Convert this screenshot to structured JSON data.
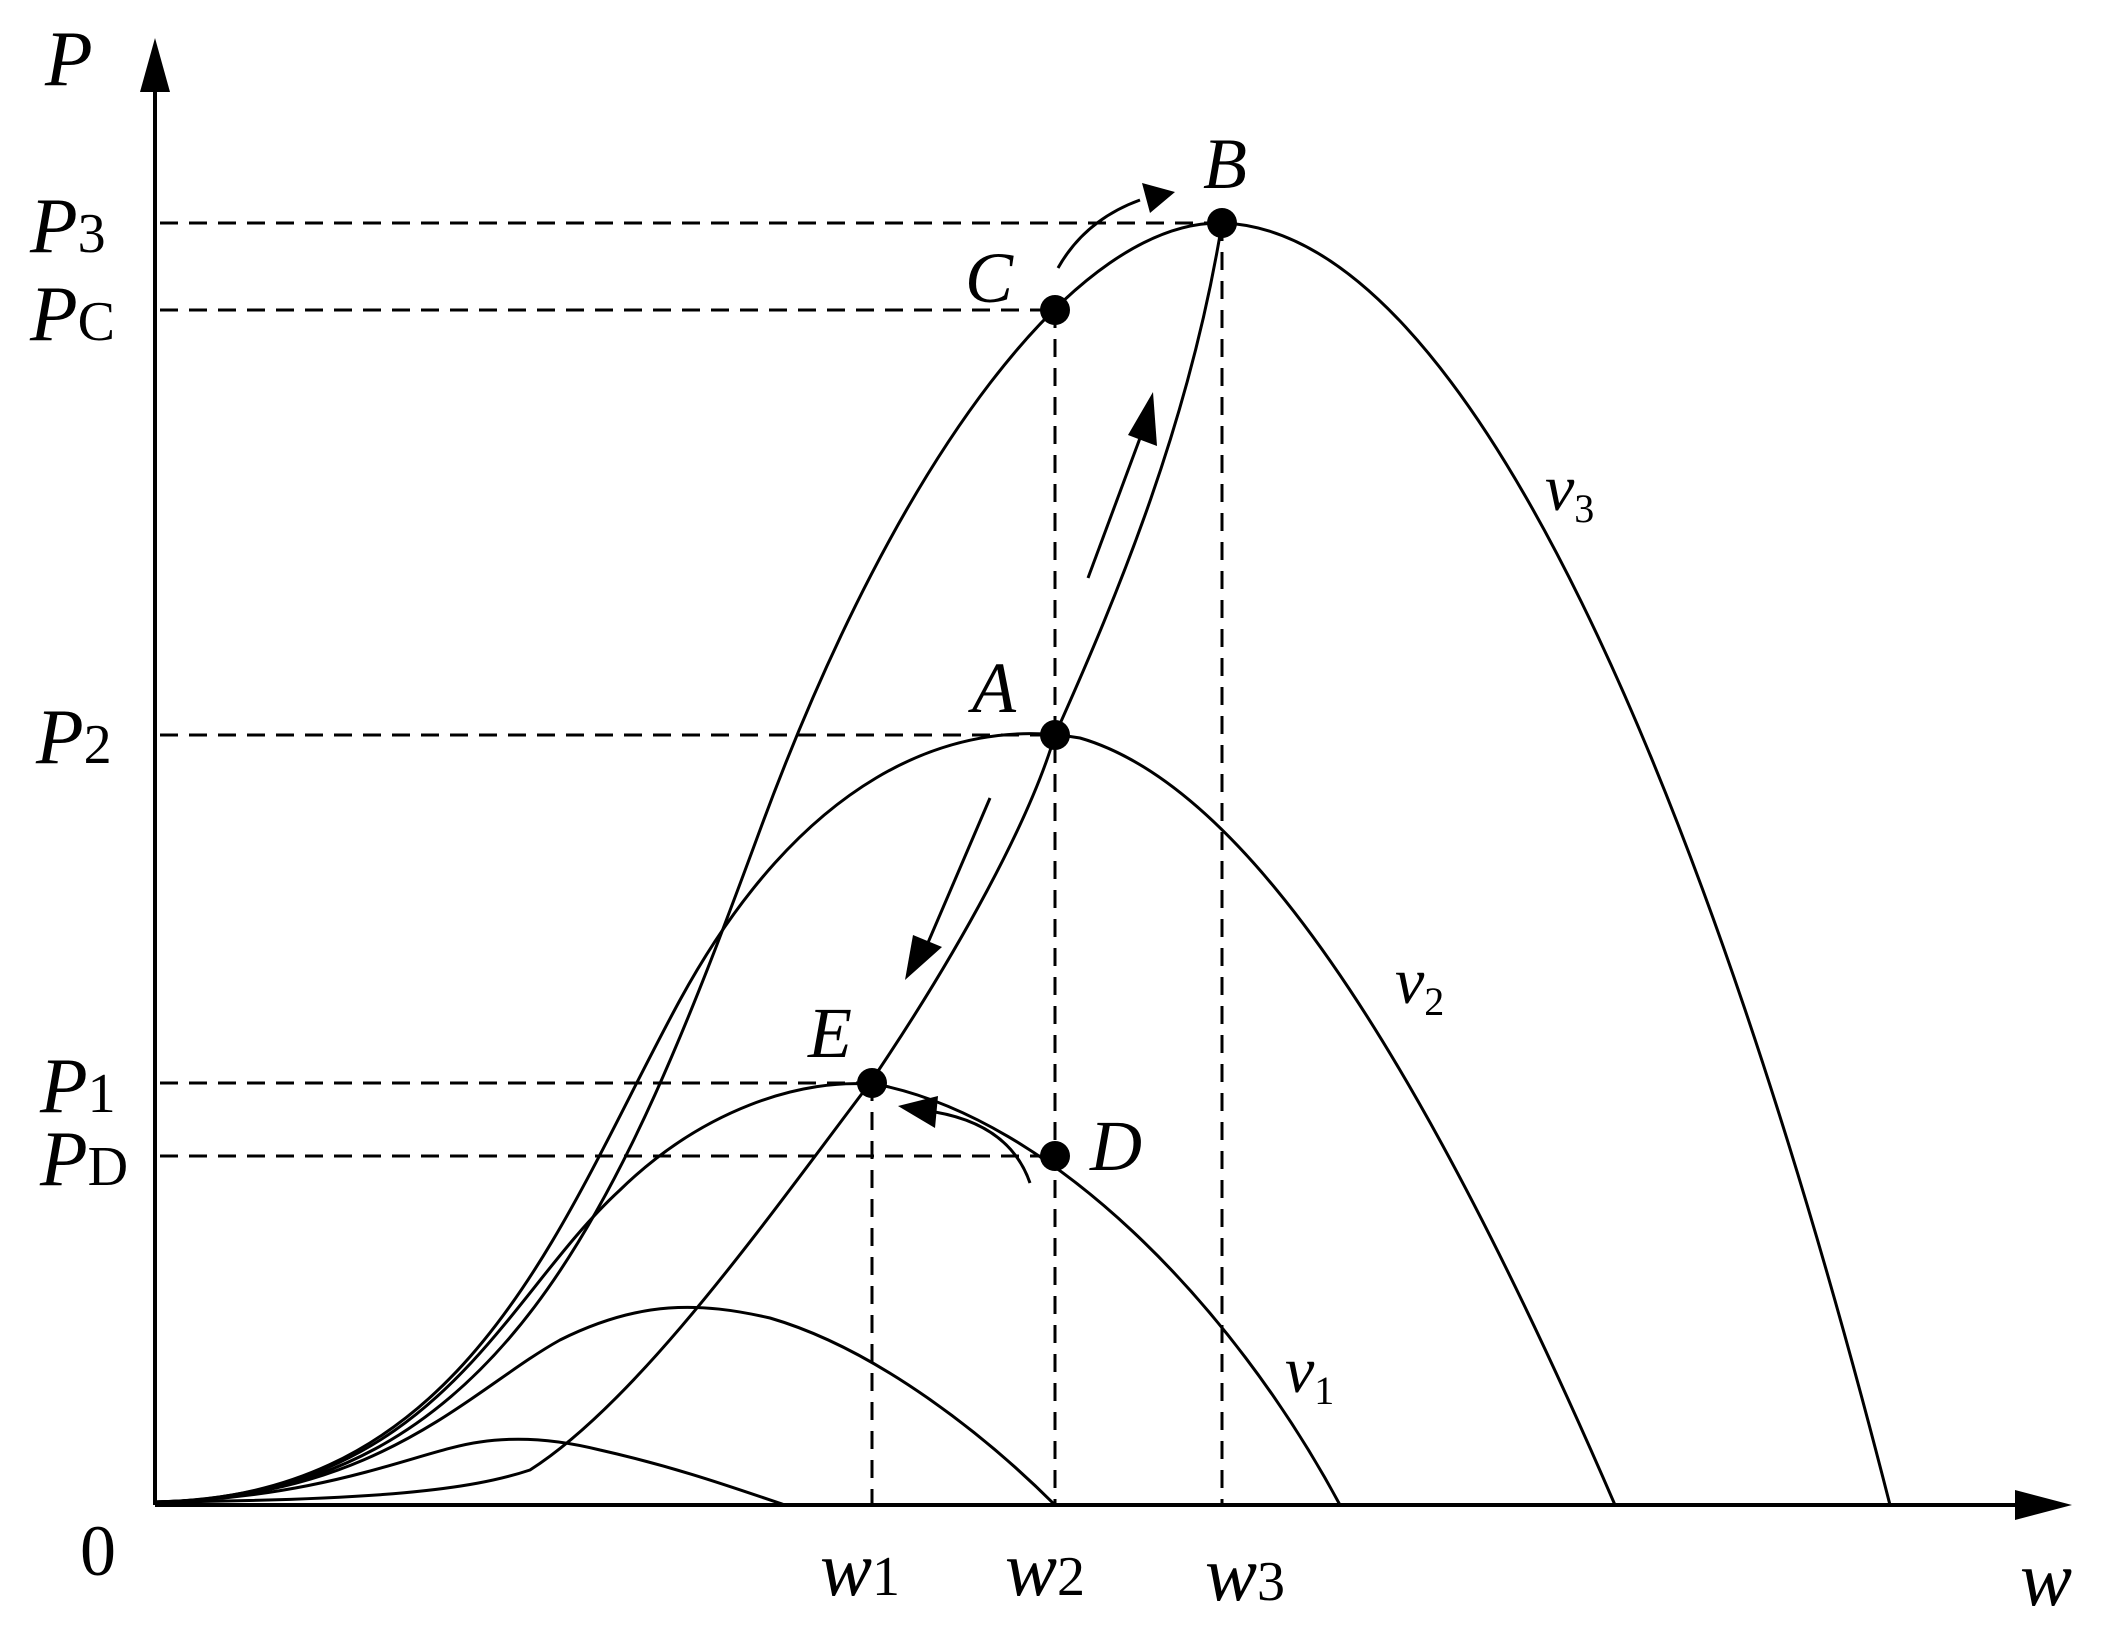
{
  "axes": {
    "y_label": "P",
    "x_label": "w",
    "origin_label": "0"
  },
  "y_ticks": [
    {
      "main": "P",
      "sub": "3"
    },
    {
      "main": "P",
      "sub": "C"
    },
    {
      "main": "P",
      "sub": "2"
    },
    {
      "main": "P",
      "sub": "1"
    },
    {
      "main": "P",
      "sub": "D"
    }
  ],
  "x_ticks": [
    {
      "main": "w",
      "sub": "1"
    },
    {
      "main": "w",
      "sub": "2"
    },
    {
      "main": "w",
      "sub": "3"
    }
  ],
  "points": {
    "A": "A",
    "B": "B",
    "C": "C",
    "D": "D",
    "E": "E"
  },
  "curves": [
    {
      "main": "v",
      "sub": "3"
    },
    {
      "main": "v",
      "sub": "2"
    },
    {
      "main": "v",
      "sub": "1"
    }
  ]
}
